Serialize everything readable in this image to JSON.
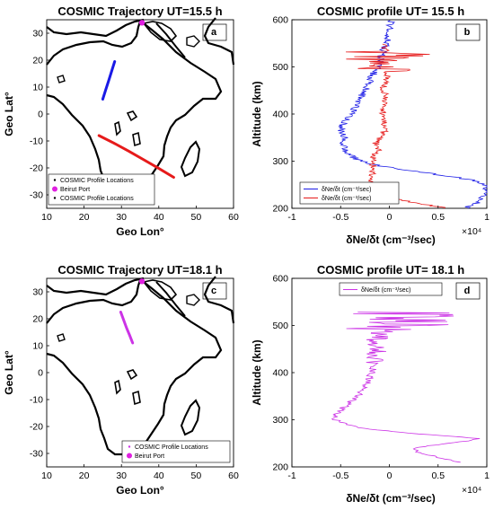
{
  "chart_data": [
    {
      "id": "a",
      "type": "scatter",
      "title": "COSMIC Trajectory UT=15.5 h",
      "panel_label": "a",
      "xlabel": "Geo Lon°",
      "ylabel": "Geo Lat°",
      "xlim": [
        10,
        60
      ],
      "ylim": [
        -35,
        35
      ],
      "xticks": [
        10,
        20,
        30,
        40,
        50,
        60
      ],
      "yticks": [
        30,
        20,
        10,
        0,
        -10,
        -20,
        -30
      ],
      "legend": {
        "placement": "bottom-left",
        "entries": [
          "COSMIC Profile Locations",
          "Beirut Port",
          "COSMIC Profile Locations"
        ]
      },
      "marker": {
        "name": "Beirut Port",
        "lon": 35.5,
        "lat": 33.9,
        "color": "#e020e0"
      },
      "series": [
        {
          "color": "#1a1ae6",
          "lon": [
            25.0,
            25.8,
            26.6,
            27.4,
            28.2
          ],
          "lat": [
            5.5,
            9.0,
            12.5,
            16.0,
            19.5
          ]
        },
        {
          "color": "#e61a1a",
          "lon": [
            24.0,
            28.0,
            32.0,
            36.0,
            40.0,
            44.0
          ],
          "lat": [
            -8.0,
            -10.8,
            -13.8,
            -17.0,
            -20.2,
            -23.5
          ]
        }
      ]
    },
    {
      "id": "b",
      "type": "line",
      "title": "COSMIC profile UT= 15.5 h",
      "panel_label": "b",
      "xlabel": "δNe/δt (cm⁻³/sec)",
      "ylabel": "Altitude (km)",
      "xlim": [
        -1,
        1
      ],
      "ylim": [
        200,
        600
      ],
      "xticks": [
        -1,
        -0.5,
        0,
        0.5,
        1
      ],
      "yticks": [
        600,
        500,
        400,
        300,
        200
      ],
      "x_multiplier": "×10⁴",
      "legend": {
        "placement": "bottom-left",
        "entries": [
          "δNe/δt (cm⁻³/sec)",
          "δNe/δt (cm⁻³/sec)"
        ]
      },
      "series": [
        {
          "color": "#1a1ae6",
          "alt": [
            200,
            210,
            220,
            230,
            240,
            250,
            260,
            270,
            280,
            290,
            300,
            310,
            320,
            330,
            340,
            350,
            360,
            370,
            380,
            390,
            400,
            410,
            420,
            430,
            440,
            450,
            460,
            470,
            480,
            490,
            500,
            510,
            520,
            530,
            540,
            550,
            560,
            570,
            580,
            590,
            600
          ],
          "x": [
            0.78,
            0.88,
            0.95,
            0.99,
            1.0,
            0.98,
            0.85,
            0.55,
            0.2,
            -0.1,
            -0.3,
            -0.38,
            -0.44,
            -0.46,
            -0.47,
            -0.45,
            -0.48,
            -0.5,
            -0.47,
            -0.43,
            -0.4,
            -0.36,
            -0.33,
            -0.3,
            -0.28,
            -0.25,
            -0.22,
            -0.2,
            -0.18,
            -0.15,
            -0.12,
            -0.1,
            -0.08,
            -0.07,
            -0.05,
            -0.03,
            -0.02,
            -0.01,
            0.0,
            0.01,
            0.02
          ]
        },
        {
          "color": "#e61a1a",
          "alt": [
            200,
            210,
            220,
            230,
            240,
            250,
            260,
            270,
            280,
            290,
            300,
            310,
            320,
            330,
            340,
            350,
            360,
            370,
            380,
            390,
            400,
            410,
            420,
            430,
            440,
            450,
            460,
            470,
            480,
            490,
            500,
            510,
            520,
            530,
            540,
            550
          ],
          "x": [
            0.6,
            0.3,
            0.05,
            -0.1,
            -0.15,
            -0.18,
            -0.2,
            -0.19,
            -0.17,
            -0.17,
            -0.18,
            -0.16,
            -0.12,
            -0.12,
            -0.14,
            -0.1,
            -0.06,
            -0.05,
            -0.04,
            -0.05,
            -0.06,
            -0.08,
            -0.06,
            -0.05,
            -0.04,
            -0.06,
            -0.05,
            -0.04,
            -0.03,
            -0.04,
            -0.05,
            -0.08,
            -0.04,
            -0.02,
            -0.05,
            -0.03
          ]
        }
      ]
    },
    {
      "id": "c",
      "type": "scatter",
      "title": "COSMIC Trajectory UT=18.1 h",
      "panel_label": "c",
      "xlabel": "Geo Lon°",
      "ylabel": "Geo Lat°",
      "xlim": [
        10,
        60
      ],
      "ylim": [
        -35,
        35
      ],
      "xticks": [
        10,
        20,
        30,
        40,
        50,
        60
      ],
      "yticks": [
        30,
        20,
        10,
        0,
        -10,
        -20,
        -30
      ],
      "legend": {
        "placement": "bottom-right",
        "entries": [
          "COSMIC Profile Locations",
          "Beirut Port"
        ]
      },
      "marker": {
        "name": "Beirut Port",
        "lon": 35.5,
        "lat": 33.9,
        "color": "#e020e0"
      },
      "series": [
        {
          "color": "#cc33e6",
          "lon": [
            29.8,
            30.6,
            31.4,
            32.2,
            33.0
          ],
          "lat": [
            22.5,
            19.5,
            16.5,
            13.8,
            11.0
          ]
        }
      ]
    },
    {
      "id": "d",
      "type": "line",
      "title": "COSMIC profile UT= 18.1 h",
      "panel_label": "d",
      "xlabel": "δNe/δt (cm⁻³/sec)",
      "ylabel": "Altitude (km)",
      "xlim": [
        -1,
        1
      ],
      "ylim": [
        200,
        600
      ],
      "xticks": [
        -1,
        -0.5,
        0,
        0.5,
        1
      ],
      "yticks": [
        600,
        500,
        400,
        300,
        200
      ],
      "x_multiplier": "×10⁴",
      "legend": {
        "placement": "top",
        "entries": [
          "δNe/δt (cm⁻³/sec)"
        ]
      },
      "series": [
        {
          "color": "#cc33e6",
          "alt": [
            210,
            220,
            230,
            240,
            250,
            260,
            270,
            280,
            290,
            300,
            310,
            320,
            330,
            340,
            350,
            360,
            370,
            380,
            390,
            400,
            410,
            420,
            430,
            440,
            450,
            460,
            470,
            480,
            490,
            500,
            510,
            520,
            530
          ],
          "x": [
            0.7,
            0.5,
            0.3,
            0.25,
            0.6,
            0.95,
            0.3,
            -0.2,
            -0.45,
            -0.55,
            -0.55,
            -0.5,
            -0.45,
            -0.38,
            -0.32,
            -0.28,
            -0.24,
            -0.22,
            -0.2,
            -0.18,
            -0.17,
            -0.16,
            -0.15,
            -0.15,
            -0.14,
            -0.12,
            -0.12,
            -0.1,
            -0.05,
            0.0,
            0.05,
            0.1,
            0.0
          ]
        }
      ]
    }
  ]
}
